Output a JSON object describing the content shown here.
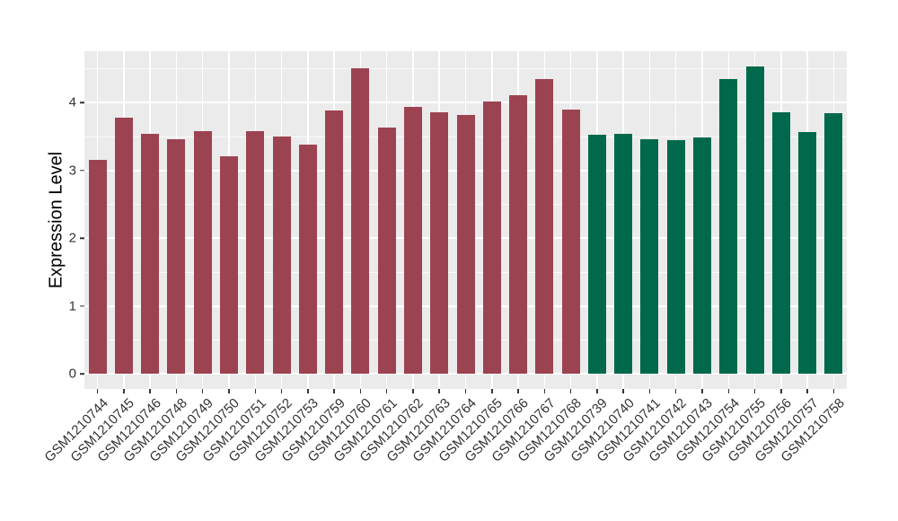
{
  "chart_data": {
    "type": "bar",
    "title": "",
    "xlabel": "",
    "ylabel": "Expression Level",
    "ylim": [
      0,
      4.76
    ],
    "yticks": [
      0,
      1,
      2,
      3,
      4
    ],
    "grid": true,
    "legend_position": "none",
    "categories": [
      "GSM1210744",
      "GSM1210745",
      "GSM1210746",
      "GSM1210748",
      "GSM1210749",
      "GSM1210750",
      "GSM1210751",
      "GSM1210752",
      "GSM1210753",
      "GSM1210759",
      "GSM1210760",
      "GSM1210761",
      "GSM1210762",
      "GSM1210763",
      "GSM1210764",
      "GSM1210765",
      "GSM1210766",
      "GSM1210767",
      "GSM1210768",
      "GSM1210739",
      "GSM1210740",
      "GSM1210741",
      "GSM1210742",
      "GSM1210743",
      "GSM1210754",
      "GSM1210755",
      "GSM1210756",
      "GSM1210757",
      "GSM1210758"
    ],
    "values": [
      3.15,
      3.77,
      3.53,
      3.46,
      3.57,
      3.21,
      3.58,
      3.5,
      3.38,
      3.88,
      4.5,
      3.63,
      3.93,
      3.85,
      3.81,
      4.01,
      4.11,
      4.34,
      3.9,
      3.52,
      3.54,
      3.46,
      3.44,
      3.49,
      4.35,
      4.53,
      3.85,
      3.56,
      3.84
    ],
    "bar_groups": [
      "group1",
      "group1",
      "group1",
      "group1",
      "group1",
      "group1",
      "group1",
      "group1",
      "group1",
      "group1",
      "group1",
      "group1",
      "group1",
      "group1",
      "group1",
      "group1",
      "group1",
      "group1",
      "group1",
      "group2",
      "group2",
      "group2",
      "group2",
      "group2",
      "group2",
      "group2",
      "group2",
      "group2",
      "group2"
    ],
    "group_colors": {
      "group1": "#9C4352",
      "group2": "#00694B"
    },
    "colors": {
      "panel_background": "#EBEBEB",
      "gridline": "#FFFFFF",
      "axis_text": "#333333",
      "axis_title": "#000000"
    }
  }
}
